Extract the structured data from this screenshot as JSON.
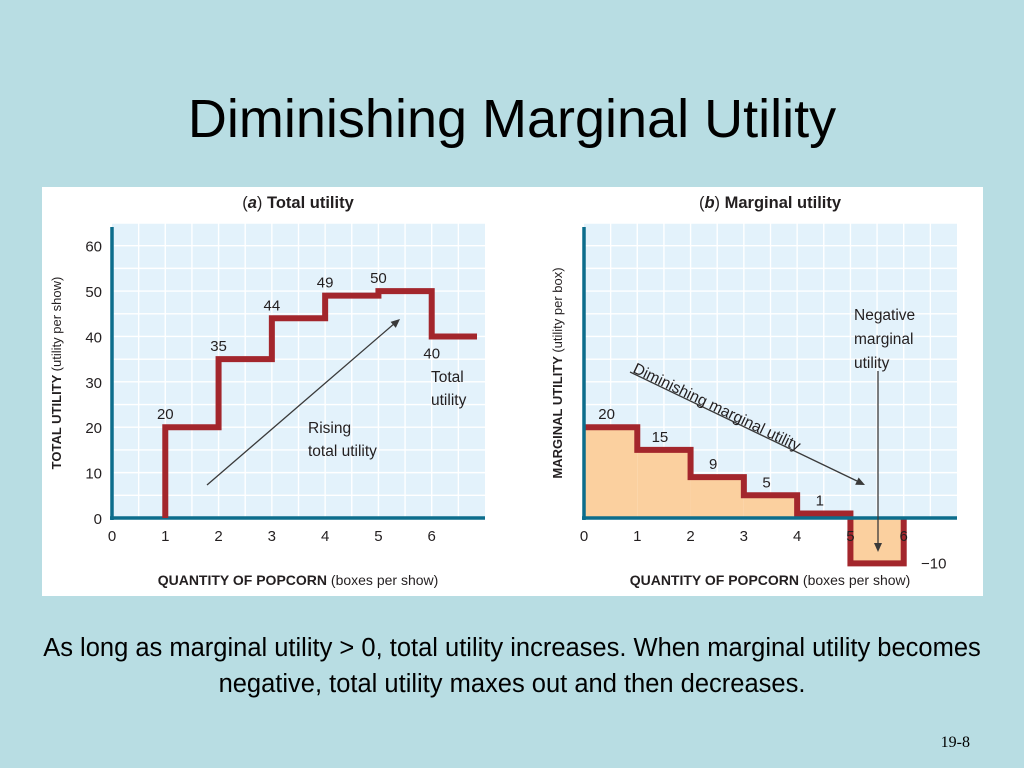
{
  "slide": {
    "title": "Diminishing Marginal Utility",
    "caption": "As long as marginal utility > 0, total utility increases. When marginal utility becomes negative, total utility maxes out and then decreases.",
    "page_number": "19-8"
  },
  "colors": {
    "background": "#b8dde3",
    "plot_background": "#e3f2fb",
    "grid": "#ffffff",
    "axis": "#0c6d8c",
    "line": "#a3262c",
    "fill": "#fbd09f",
    "arrow": "#3a3a3a"
  },
  "chart_data": [
    {
      "type": "line",
      "step": true,
      "panel_letter": "a",
      "title": "Total utility",
      "ylabel_bold": "TOTAL UTILITY",
      "ylabel_paren": "(utility per show)",
      "xlabel_bold": "QUANTITY OF POPCORN",
      "xlabel_paren": "(boxes per show)",
      "xlim": [
        0,
        7
      ],
      "ylim": [
        0,
        65
      ],
      "x_ticks": [
        "0",
        "1",
        "2",
        "3",
        "4",
        "5",
        "6"
      ],
      "y_ticks": [
        "0",
        "10",
        "20",
        "30",
        "40",
        "50",
        "60"
      ],
      "grid": true,
      "x": [
        1,
        2,
        3,
        4,
        5,
        6
      ],
      "y": [
        20,
        35,
        44,
        49,
        50,
        40
      ],
      "data_labels": [
        "20",
        "35",
        "44",
        "49",
        "50",
        "40"
      ],
      "annotations": [
        {
          "text": [
            "Rising",
            "total utility"
          ],
          "arrow": {
            "from": [
              0.8,
              7
            ],
            "to": [
              5.4,
              44
            ]
          }
        },
        {
          "text": [
            "Total",
            "utility"
          ]
        }
      ]
    },
    {
      "type": "bar",
      "step": true,
      "panel_letter": "b",
      "title": "Marginal utility",
      "ylabel_bold": "MARGINAL UTILITY",
      "ylabel_paren": "(utility per box)",
      "xlabel_bold": "QUANTITY OF POPCORN",
      "xlabel_paren": "(boxes per show)",
      "xlim": [
        0,
        7
      ],
      "ylim": [
        -12,
        65
      ],
      "x_ticks": [
        "0",
        "1",
        "2",
        "3",
        "4",
        "5",
        "6"
      ],
      "grid": true,
      "x": [
        1,
        2,
        3,
        4,
        5,
        6
      ],
      "values": [
        20,
        15,
        9,
        5,
        1,
        -10
      ],
      "data_labels": [
        "20",
        "15",
        "9",
        "5",
        "1",
        "−10"
      ],
      "annotations": [
        {
          "text": "Diminishing marginal utility",
          "arrow": {
            "from": [
              0.9,
              34
            ],
            "to": [
              5.2,
              8
            ]
          }
        },
        {
          "text": [
            "Negative",
            "marginal",
            "utility"
          ],
          "arrow": {
            "from": [
              5.4,
              33
            ],
            "to": [
              5.4,
              -8
            ]
          }
        }
      ]
    }
  ]
}
